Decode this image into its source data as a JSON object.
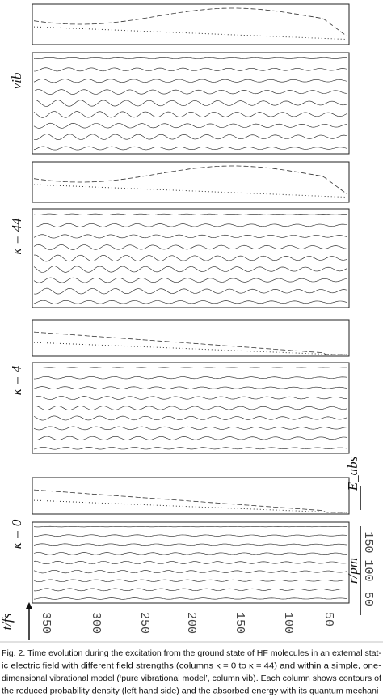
{
  "figure": {
    "panels": [
      {
        "label": "vib"
      },
      {
        "label": "κ = 44"
      },
      {
        "label": "κ = 4"
      },
      {
        "label": "κ = 0"
      }
    ],
    "time_axis": {
      "label": "t/fs",
      "ticks": [
        "350",
        "300",
        "250",
        "200",
        "150",
        "100",
        "50"
      ]
    },
    "r_axis": {
      "label": "r/pm",
      "ticks": [
        "50",
        "100",
        "150"
      ]
    },
    "energy_axis": {
      "label": "E_abs"
    }
  },
  "caption": [
    "Fig. 2. Time evolution during the excitation from the ground state of HF molecules in an external stat-",
    "ic electric field with different field strengths (columns κ = 0 to κ = 44) and within a simple, one-",
    "dimensional vibrational model (‘pure vibrational model’, column vib). Each column shows contours of",
    "the reduced probability density (left hand side) and the absorbed energy with its quantum mechani-"
  ]
}
